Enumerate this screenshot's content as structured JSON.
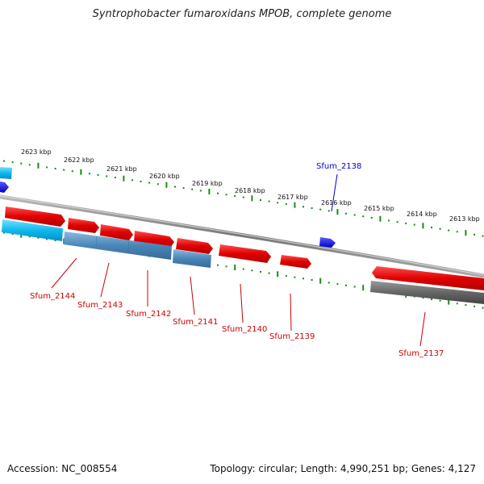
{
  "title": "Syntrophobacter fumaroxidans MPOB, complete genome",
  "footer": {
    "accession": "Accession: NC_008554",
    "topology": "Topology: circular; Length: 4,990,251 bp; Genes: 4,127"
  },
  "colors": {
    "forward_gene": "#e01010",
    "reverse_gene_cyan": "#00b8e8",
    "reverse_gene_steel": "#4a86b8",
    "reverse_gene_gray": "#666666",
    "highlight_gene": "#1010e0",
    "backbone": "#888888",
    "tick": "#1a8a1a",
    "label_red": "#cc0000",
    "label_blue": "#0000cc"
  },
  "scale_labels": [
    "2623 kbp",
    "2622 kbp",
    "2621 kbp",
    "2620 kbp",
    "2619 kbp",
    "2618 kbp",
    "2617 kbp",
    "2616 kbp",
    "2615 kbp",
    "2614 kbp",
    "2613 kbp"
  ],
  "genes": [
    {
      "name": "Sfum_2144",
      "strand": "reverse",
      "color": "cyan"
    },
    {
      "name": "Sfum_2143",
      "strand": "reverse",
      "color": "steel"
    },
    {
      "name": "Sfum_2142",
      "strand": "forward",
      "color": "red"
    },
    {
      "name": "Sfum_2141",
      "strand": "forward",
      "color": "red"
    },
    {
      "name": "Sfum_2140",
      "strand": "forward",
      "color": "red"
    },
    {
      "name": "Sfum_2139",
      "strand": "forward",
      "color": "red"
    },
    {
      "name": "Sfum_2138",
      "strand": "forward",
      "color": "blue"
    },
    {
      "name": "Sfum_2137",
      "strand": "forward",
      "color": "red"
    }
  ]
}
